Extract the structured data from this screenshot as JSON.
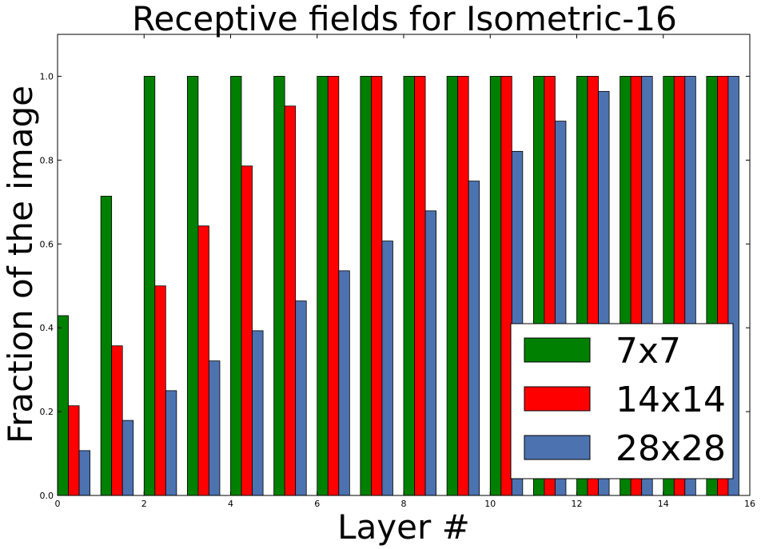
{
  "chart_data": {
    "type": "bar",
    "title": "Receptive fields for Isometric-16",
    "xlabel": "Layer #",
    "ylabel": "Fraction of the image",
    "xlim": [
      0,
      16
    ],
    "ylim": [
      0,
      1.1
    ],
    "x": [
      0,
      1,
      2,
      3,
      4,
      5,
      6,
      7,
      8,
      9,
      10,
      11,
      12,
      13,
      14,
      15
    ],
    "xticks": [
      "0",
      "2",
      "4",
      "6",
      "8",
      "10",
      "12",
      "14",
      "16"
    ],
    "yticks": [
      "0.0",
      "0.2",
      "0.4",
      "0.6",
      "0.8",
      "1.0"
    ],
    "grid": false,
    "legend_position": "lower-right",
    "series": [
      {
        "name": "7x7",
        "color": "#008000",
        "values": [
          0.429,
          0.714,
          1.0,
          1.0,
          1.0,
          1.0,
          1.0,
          1.0,
          1.0,
          1.0,
          1.0,
          1.0,
          1.0,
          1.0,
          1.0,
          1.0
        ]
      },
      {
        "name": "14x14",
        "color": "#ff0000",
        "values": [
          0.214,
          0.357,
          0.5,
          0.643,
          0.786,
          0.929,
          1.0,
          1.0,
          1.0,
          1.0,
          1.0,
          1.0,
          1.0,
          1.0,
          1.0,
          1.0
        ]
      },
      {
        "name": "28x28",
        "color": "#4c72b0",
        "values": [
          0.107,
          0.179,
          0.25,
          0.321,
          0.393,
          0.464,
          0.536,
          0.607,
          0.679,
          0.75,
          0.821,
          0.893,
          0.964,
          1.0,
          1.0,
          1.0
        ]
      }
    ]
  }
}
